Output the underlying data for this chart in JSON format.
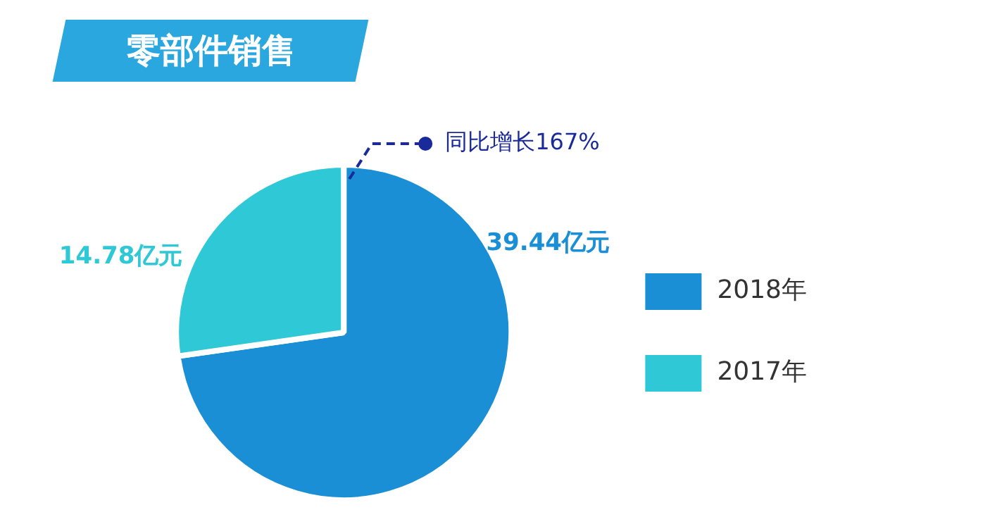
{
  "chart_data": {
    "type": "pie",
    "title": "零部件销售",
    "categories": [
      "2018年",
      "2017年"
    ],
    "values": [
      39.44,
      14.78
    ],
    "colors": [
      "#1a8fd6",
      "#2ec8d6"
    ],
    "value_labels": [
      "39.44亿元",
      "14.78亿元"
    ],
    "annotations": [
      "同比增长167%"
    ],
    "legend": "right"
  }
}
